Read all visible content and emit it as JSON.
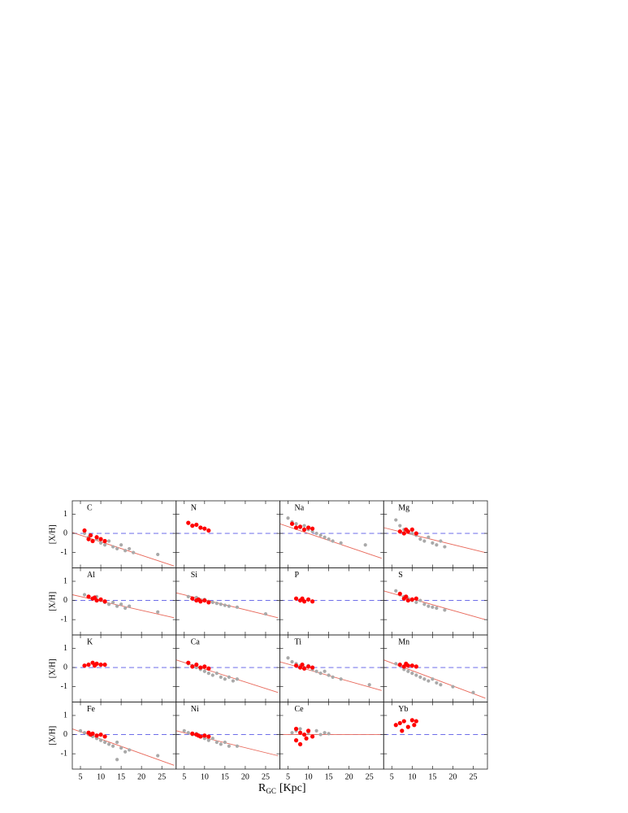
{
  "figure": {
    "xlabel": "R",
    "xlabel_sub": "GC",
    "xlabel_unit": "[Kpc]"
  },
  "chart_data": [
    {
      "type": "scatter",
      "title": "C",
      "ylabel": "[X/H]",
      "xlim": [
        3,
        28.5
      ],
      "ylim": [
        -1.8,
        1.7
      ],
      "xticks": [
        5,
        10,
        15,
        20,
        25
      ],
      "yticks": [
        1,
        0,
        -1
      ],
      "hline": 0,
      "series": [
        {
          "color": "#a9a9a9",
          "x": [
            6,
            7,
            8,
            9,
            10,
            11,
            12,
            13,
            14,
            15,
            16,
            17,
            18,
            24
          ],
          "values": [
            0,
            -0.2,
            -0.4,
            -0.3,
            -0.5,
            -0.6,
            -0.4,
            -0.7,
            -0.8,
            -0.6,
            -0.9,
            -0.8,
            -1.0,
            -1.1
          ]
        },
        {
          "color": "#ff0000",
          "x": [
            6,
            7,
            7.5,
            8,
            9,
            10,
            11
          ],
          "values": [
            0.15,
            -0.3,
            -0.1,
            -0.4,
            -0.2,
            -0.3,
            -0.4
          ]
        }
      ],
      "fit": {
        "color": "#e8685a",
        "x": [
          3,
          28
        ],
        "values": [
          0.05,
          -1.7
        ]
      }
    },
    {
      "type": "scatter",
      "title": "N",
      "xlim": [
        3,
        28.5
      ],
      "ylim": [
        -1.8,
        1.7
      ],
      "xticks": [
        5,
        10,
        15,
        20,
        25
      ],
      "yticks": [
        1,
        0,
        -1
      ],
      "hline": 0,
      "series": [
        {
          "color": "#ff0000",
          "x": [
            6,
            7,
            8,
            9,
            10,
            11
          ],
          "values": [
            0.55,
            0.4,
            0.45,
            0.3,
            0.25,
            0.15
          ]
        }
      ]
    },
    {
      "type": "scatter",
      "title": "Na",
      "xlim": [
        3,
        28.5
      ],
      "ylim": [
        -1.8,
        1.7
      ],
      "xticks": [
        5,
        10,
        15,
        20,
        25
      ],
      "yticks": [
        1,
        0,
        -1
      ],
      "hline": 0,
      "series": [
        {
          "color": "#a9a9a9",
          "x": [
            5,
            6,
            7,
            8,
            9,
            10,
            11,
            12,
            13,
            14,
            15,
            16,
            18,
            24
          ],
          "values": [
            0.8,
            0.6,
            0.5,
            0.3,
            0.4,
            0.2,
            0.1,
            0,
            -0.1,
            -0.2,
            -0.3,
            -0.4,
            -0.5,
            -0.6
          ]
        },
        {
          "color": "#ff0000",
          "x": [
            6,
            7,
            8,
            9,
            10,
            11
          ],
          "values": [
            0.5,
            0.3,
            0.35,
            0.2,
            0.3,
            0.25
          ]
        }
      ],
      "fit": {
        "color": "#e8685a",
        "x": [
          3,
          28
        ],
        "values": [
          0.5,
          -1.3
        ]
      }
    },
    {
      "type": "scatter",
      "title": "Mg",
      "xlim": [
        3,
        28.5
      ],
      "ylim": [
        -1.8,
        1.7
      ],
      "xticks": [
        5,
        10,
        15,
        20,
        25
      ],
      "yticks": [
        1,
        0,
        -1
      ],
      "hline": 0,
      "series": [
        {
          "color": "#a9a9a9",
          "x": [
            6,
            7,
            8,
            9,
            10,
            11,
            12,
            13,
            14,
            15,
            16,
            17,
            18
          ],
          "values": [
            0.7,
            0.4,
            0.2,
            0.1,
            0,
            -0.1,
            -0.3,
            -0.4,
            -0.2,
            -0.5,
            -0.6,
            -0.4,
            -0.7
          ]
        },
        {
          "color": "#ff0000",
          "x": [
            7,
            8,
            8.5,
            9,
            10,
            11
          ],
          "values": [
            0.1,
            0,
            0.2,
            0.1,
            0.2,
            0
          ]
        }
      ],
      "fit": {
        "color": "#e8685a",
        "x": [
          3,
          28
        ],
        "values": [
          0.3,
          -1.0
        ]
      }
    },
    {
      "type": "scatter",
      "title": "Al",
      "ylabel": "[X/H]",
      "xlim": [
        3,
        28.5
      ],
      "ylim": [
        -1.8,
        1.7
      ],
      "xticks": [
        5,
        10,
        15,
        20,
        25
      ],
      "yticks": [
        1,
        0,
        -1
      ],
      "hline": 0,
      "series": [
        {
          "color": "#a9a9a9",
          "x": [
            6,
            7,
            8,
            9,
            10,
            11,
            12,
            13,
            14,
            15,
            16,
            17,
            24
          ],
          "values": [
            0.3,
            0.2,
            0.1,
            0.2,
            0,
            -0.1,
            -0.2,
            -0.1,
            -0.3,
            -0.2,
            -0.4,
            -0.3,
            -0.6
          ]
        },
        {
          "color": "#ff0000",
          "x": [
            7,
            8,
            8.5,
            9,
            10,
            11
          ],
          "values": [
            0.2,
            0.1,
            0.15,
            0,
            0.05,
            -0.05
          ]
        }
      ],
      "fit": {
        "color": "#e8685a",
        "x": [
          3,
          28
        ],
        "values": [
          0.3,
          -0.9
        ]
      }
    },
    {
      "type": "scatter",
      "title": "Si",
      "xlim": [
        3,
        28.5
      ],
      "ylim": [
        -1.8,
        1.7
      ],
      "xticks": [
        5,
        10,
        15,
        20,
        25
      ],
      "yticks": [
        1,
        0,
        -1
      ],
      "hline": 0,
      "series": [
        {
          "color": "#a9a9a9",
          "x": [
            6,
            7,
            8,
            9,
            10,
            11,
            12,
            13,
            14,
            15,
            16,
            18,
            25
          ],
          "values": [
            0.2,
            0.1,
            0.15,
            0,
            0.05,
            -0.05,
            -0.1,
            -0.15,
            -0.2,
            -0.25,
            -0.3,
            -0.35,
            -0.7
          ]
        },
        {
          "color": "#ff0000",
          "x": [
            7,
            8,
            8.5,
            9,
            10,
            11
          ],
          "values": [
            0.1,
            0,
            0.05,
            -0.05,
            0,
            -0.1
          ]
        }
      ],
      "fit": {
        "color": "#e8685a",
        "x": [
          3,
          28
        ],
        "values": [
          0.4,
          -0.9
        ]
      }
    },
    {
      "type": "scatter",
      "title": "P",
      "xlim": [
        3,
        28.5
      ],
      "ylim": [
        -1.8,
        1.7
      ],
      "xticks": [
        5,
        10,
        15,
        20,
        25
      ],
      "yticks": [
        1,
        0,
        -1
      ],
      "hline": 0,
      "series": [
        {
          "color": "#ff0000",
          "x": [
            7,
            8,
            8.5,
            9,
            10,
            11
          ],
          "values": [
            0.1,
            0,
            0.1,
            -0.05,
            0.05,
            -0.05
          ]
        }
      ]
    },
    {
      "type": "scatter",
      "title": "S",
      "xlim": [
        3,
        28.5
      ],
      "ylim": [
        -1.8,
        1.7
      ],
      "xticks": [
        5,
        10,
        15,
        20,
        25
      ],
      "yticks": [
        1,
        0,
        -1
      ],
      "hline": 0,
      "series": [
        {
          "color": "#a9a9a9",
          "x": [
            6,
            7,
            8,
            9,
            10,
            11,
            12,
            13,
            14,
            15,
            16,
            18
          ],
          "values": [
            0.5,
            0.3,
            0.2,
            0.1,
            0,
            -0.1,
            0,
            -0.2,
            -0.3,
            -0.35,
            -0.4,
            -0.5
          ]
        },
        {
          "color": "#ff0000",
          "x": [
            7,
            8,
            8.5,
            9,
            10,
            11
          ],
          "values": [
            0.35,
            0.1,
            0.2,
            0,
            0.05,
            0.1
          ]
        }
      ],
      "fit": {
        "color": "#e8685a",
        "x": [
          3,
          28
        ],
        "values": [
          0.5,
          -1.0
        ]
      }
    },
    {
      "type": "scatter",
      "title": "K",
      "ylabel": "[X/H]",
      "xlim": [
        3,
        28.5
      ],
      "ylim": [
        -1.8,
        1.7
      ],
      "xticks": [
        5,
        10,
        15,
        20,
        25
      ],
      "yticks": [
        1,
        0,
        -1
      ],
      "hline": 0,
      "series": [
        {
          "color": "#ff0000",
          "x": [
            6,
            7,
            8,
            8.5,
            9,
            10,
            11
          ],
          "values": [
            0.1,
            0.15,
            0.25,
            0.1,
            0.2,
            0.15,
            0.15
          ]
        }
      ]
    },
    {
      "type": "scatter",
      "title": "Ca",
      "xlim": [
        3,
        28.5
      ],
      "ylim": [
        -1.8,
        1.7
      ],
      "xticks": [
        5,
        10,
        15,
        20,
        25
      ],
      "yticks": [
        1,
        0,
        -1
      ],
      "hline": 0,
      "series": [
        {
          "color": "#a9a9a9",
          "x": [
            6,
            7,
            8,
            9,
            10,
            11,
            12,
            13,
            14,
            15,
            16,
            17,
            18
          ],
          "values": [
            0.2,
            0.1,
            0,
            -0.1,
            -0.2,
            -0.3,
            -0.4,
            -0.3,
            -0.5,
            -0.6,
            -0.5,
            -0.7,
            -0.6
          ]
        },
        {
          "color": "#ff0000",
          "x": [
            6,
            7,
            8,
            9,
            10,
            11
          ],
          "values": [
            0.25,
            0.05,
            0.15,
            0,
            0.05,
            -0.05
          ]
        }
      ],
      "fit": {
        "color": "#e8685a",
        "x": [
          3,
          28
        ],
        "values": [
          0.4,
          -1.3
        ]
      }
    },
    {
      "type": "scatter",
      "title": "Ti",
      "xlim": [
        3,
        28.5
      ],
      "ylim": [
        -1.8,
        1.7
      ],
      "xticks": [
        5,
        10,
        15,
        20,
        25
      ],
      "yticks": [
        1,
        0,
        -1
      ],
      "hline": 0,
      "series": [
        {
          "color": "#a9a9a9",
          "x": [
            5,
            6,
            7,
            8,
            9,
            10,
            11,
            12,
            13,
            14,
            15,
            16,
            18,
            25
          ],
          "values": [
            0.5,
            0.3,
            0.2,
            0.1,
            0,
            0.1,
            -0.1,
            -0.2,
            -0.3,
            -0.2,
            -0.4,
            -0.5,
            -0.6,
            -0.9
          ]
        },
        {
          "color": "#ff0000",
          "x": [
            7,
            8,
            8.5,
            9,
            10,
            11
          ],
          "values": [
            0.1,
            0,
            0.15,
            -0.05,
            0.05,
            0
          ]
        }
      ],
      "fit": {
        "color": "#e8685a",
        "x": [
          3,
          28
        ],
        "values": [
          0.3,
          -1.2
        ]
      }
    },
    {
      "type": "scatter",
      "title": "Mn",
      "xlim": [
        3,
        28.5
      ],
      "ylim": [
        -1.8,
        1.7
      ],
      "xticks": [
        5,
        10,
        15,
        20,
        25
      ],
      "yticks": [
        1,
        0,
        -1
      ],
      "hline": 0,
      "series": [
        {
          "color": "#a9a9a9",
          "x": [
            6,
            7,
            8,
            9,
            10,
            11,
            12,
            13,
            14,
            15,
            16,
            17,
            20,
            25
          ],
          "values": [
            0.2,
            0.1,
            -0.1,
            -0.2,
            -0.3,
            -0.4,
            -0.5,
            -0.6,
            -0.7,
            -0.6,
            -0.8,
            -0.9,
            -1.0,
            -1.3
          ]
        },
        {
          "color": "#ff0000",
          "x": [
            7,
            8,
            8.5,
            9,
            10,
            11
          ],
          "values": [
            0.15,
            0.05,
            0.2,
            0.1,
            0.1,
            0.05
          ]
        }
      ],
      "fit": {
        "color": "#e8685a",
        "x": [
          3,
          28
        ],
        "values": [
          0.4,
          -1.6
        ]
      }
    },
    {
      "type": "scatter",
      "title": "Fe",
      "ylabel": "[X/H]",
      "xlim": [
        3,
        28.5
      ],
      "ylim": [
        -1.8,
        1.7
      ],
      "xticks": [
        5,
        10,
        15,
        20,
        25
      ],
      "yticks": [
        1,
        0,
        -1
      ],
      "hline": 0,
      "series": [
        {
          "color": "#a9a9a9",
          "x": [
            5,
            6,
            7,
            8,
            9,
            10,
            11,
            12,
            13,
            14,
            15,
            16,
            17,
            14,
            24
          ],
          "values": [
            0.2,
            0.1,
            0,
            -0.1,
            -0.2,
            -0.3,
            -0.4,
            -0.5,
            -0.6,
            -0.4,
            -0.7,
            -0.9,
            -0.8,
            -1.3,
            -1.1
          ]
        },
        {
          "color": "#ff0000",
          "x": [
            7,
            7.5,
            8,
            9,
            10,
            11
          ],
          "values": [
            0.1,
            0,
            0.05,
            -0.05,
            0,
            -0.1
          ]
        }
      ],
      "fit": {
        "color": "#e8685a",
        "x": [
          3,
          28
        ],
        "values": [
          0.3,
          -1.6
        ]
      }
    },
    {
      "type": "scatter",
      "title": "Ni",
      "xlim": [
        3,
        28.5
      ],
      "ylim": [
        -1.8,
        1.7
      ],
      "xticks": [
        5,
        10,
        15,
        20,
        25
      ],
      "yticks": [
        1,
        0,
        -1
      ],
      "hline": 0,
      "series": [
        {
          "color": "#a9a9a9",
          "x": [
            5,
            6,
            7,
            8,
            9,
            10,
            11,
            12,
            13,
            14,
            15,
            16,
            18
          ],
          "values": [
            0.2,
            0.1,
            0,
            0.05,
            -0.1,
            -0.2,
            -0.3,
            -0.2,
            -0.4,
            -0.5,
            -0.4,
            -0.6,
            -0.6
          ]
        },
        {
          "color": "#ff0000",
          "x": [
            7,
            8,
            8.5,
            9,
            10,
            11
          ],
          "values": [
            0.05,
            0,
            -0.05,
            -0.1,
            -0.05,
            -0.1
          ]
        }
      ],
      "fit": {
        "color": "#e8685a",
        "x": [
          3,
          28
        ],
        "values": [
          0.2,
          -1.1
        ]
      }
    },
    {
      "type": "scatter",
      "title": "Ce",
      "xlim": [
        3,
        28.5
      ],
      "ylim": [
        -1.8,
        1.7
      ],
      "xticks": [
        5,
        10,
        15,
        20,
        25
      ],
      "yticks": [
        1,
        0,
        -1
      ],
      "hline": 0,
      "series": [
        {
          "color": "#a9a9a9",
          "x": [
            6,
            7,
            8,
            9,
            10,
            11,
            12,
            13,
            14,
            15
          ],
          "values": [
            0.1,
            0.2,
            0.3,
            0,
            0.1,
            -0.1,
            0.2,
            0,
            0.1,
            0.05
          ]
        },
        {
          "color": "#ff0000",
          "x": [
            7,
            7,
            8,
            8,
            9,
            9.5,
            10,
            11
          ],
          "values": [
            0.3,
            -0.3,
            0.1,
            -0.5,
            0,
            -0.2,
            0.2,
            -0.1
          ]
        }
      ],
      "fit": {
        "color": "#e8685a",
        "x": [
          3,
          28
        ],
        "values": [
          0,
          0
        ]
      }
    },
    {
      "type": "scatter",
      "title": "Yb",
      "xlim": [
        3,
        28.5
      ],
      "ylim": [
        -1.8,
        1.7
      ],
      "xticks": [
        5,
        10,
        15,
        20,
        25
      ],
      "yticks": [
        1,
        0,
        -1
      ],
      "hline": 0,
      "series": [
        {
          "color": "#ff0000",
          "x": [
            6,
            7,
            7.5,
            8,
            9,
            10,
            10.5,
            11
          ],
          "values": [
            0.5,
            0.6,
            0.2,
            0.7,
            0.4,
            0.75,
            0.5,
            0.7
          ]
        }
      ]
    }
  ]
}
